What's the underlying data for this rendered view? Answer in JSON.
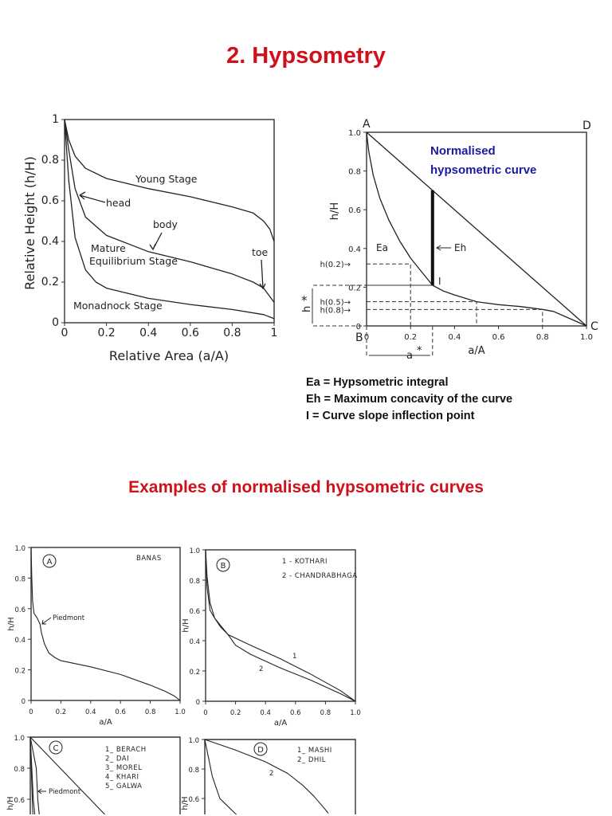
{
  "page": {
    "title": "2. Hypsometry",
    "examples_title": "Examples of normalised hypsometric curves",
    "legend": [
      "Ea = Hypsometric integral",
      "Eh = Maximum concavity of the curve",
      "I = Curve slope inflection point"
    ]
  },
  "chart_data": [
    {
      "id": "stages",
      "type": "line",
      "xlabel": "Relative Area (a/A)",
      "ylabel": "Relative Height (h/H)",
      "xlim": [
        0,
        1
      ],
      "ylim": [
        0,
        1
      ],
      "xticks": [
        "0",
        "0.2",
        "0.4",
        "0.6",
        "0.8",
        "1"
      ],
      "yticks": [
        "0",
        "0.2",
        "0.4",
        "0.6",
        "0.8",
        "1"
      ],
      "series": [
        {
          "name": "Young Stage",
          "x": [
            0,
            0.02,
            0.05,
            0.1,
            0.2,
            0.4,
            0.6,
            0.8,
            0.9,
            0.95,
            0.98,
            1
          ],
          "y": [
            1,
            0.9,
            0.82,
            0.76,
            0.71,
            0.66,
            0.62,
            0.57,
            0.54,
            0.5,
            0.46,
            0.4
          ]
        },
        {
          "name": "Mature Equilibrium Stage",
          "x": [
            0,
            0.02,
            0.05,
            0.1,
            0.2,
            0.4,
            0.6,
            0.8,
            0.9,
            0.95,
            1
          ],
          "y": [
            1,
            0.85,
            0.66,
            0.52,
            0.43,
            0.35,
            0.3,
            0.24,
            0.2,
            0.17,
            0.1
          ]
        },
        {
          "name": "Monadnock Stage",
          "x": [
            0,
            0.02,
            0.05,
            0.1,
            0.15,
            0.2,
            0.4,
            0.6,
            0.8,
            0.95,
            1
          ],
          "y": [
            1,
            0.7,
            0.42,
            0.26,
            0.2,
            0.17,
            0.12,
            0.09,
            0.065,
            0.04,
            0.02
          ]
        }
      ],
      "annotations": [
        "Young Stage",
        "head",
        "body",
        "Mature",
        "Equilibrium Stage",
        "toe",
        "Monadnock Stage"
      ]
    },
    {
      "id": "normalised",
      "type": "line",
      "title": "Normalised hypsometric curve",
      "title_lines": [
        "Normalised",
        "hypsometric curve"
      ],
      "title_color": "#1a1aa0",
      "xlabel": "a/A",
      "ylabel": "h/H",
      "xlim": [
        0,
        1
      ],
      "ylim": [
        0,
        1
      ],
      "xticks": [
        "0",
        "0.2",
        "0.4",
        "0.6",
        "0.8",
        "1.0"
      ],
      "yticks": [
        "0",
        "0.2",
        "0.4",
        "0.6",
        "0.8",
        "1.0"
      ],
      "corners": [
        "A",
        "B",
        "C",
        "D"
      ],
      "series": [
        {
          "name": "curve",
          "x": [
            0,
            0.01,
            0.03,
            0.06,
            0.1,
            0.15,
            0.2,
            0.25,
            0.3,
            0.35,
            0.4,
            0.5,
            0.6,
            0.7,
            0.8,
            0.85,
            0.9,
            1
          ],
          "y": [
            1,
            0.9,
            0.78,
            0.66,
            0.55,
            0.44,
            0.35,
            0.28,
            0.21,
            0.18,
            0.16,
            0.125,
            0.11,
            0.1,
            0.085,
            0.075,
            0.05,
            0
          ]
        },
        {
          "name": "diagonal",
          "x": [
            0,
            1
          ],
          "y": [
            1,
            0
          ]
        }
      ],
      "eh": {
        "x": 0.3,
        "y_from": 0.21,
        "y_to": 0.7
      },
      "guides": [
        {
          "label": "h(0.2)",
          "x": 0.2,
          "y": 0.32
        },
        {
          "label": "h(0.5)",
          "x": 0.5,
          "y": 0.125
        },
        {
          "label": "h(0.8)",
          "x": 0.8,
          "y": 0.085
        }
      ],
      "annotations": {
        "ea": "Ea",
        "eh": "Eh",
        "i": "I",
        "a_star": "a",
        "h_star": "h",
        "star": "*"
      }
    },
    {
      "id": "A",
      "type": "line",
      "badge": "A",
      "xlabel": "a/A",
      "ylabel": "h/H",
      "xticks": [
        "0",
        "0.2",
        "0.4",
        "0.6",
        "0.8",
        "1.0"
      ],
      "yticks": [
        "0",
        "0.2",
        "0.4",
        "0.6",
        "0.8",
        "1.0"
      ],
      "legend": [
        "BANAS"
      ],
      "annotation": "Piedmont",
      "series": [
        {
          "name": "BANAS",
          "x": [
            0,
            0.005,
            0.01,
            0.02,
            0.04,
            0.06,
            0.07,
            0.09,
            0.12,
            0.16,
            0.2,
            0.3,
            0.4,
            0.6,
            0.8,
            0.9,
            0.96,
            1
          ],
          "y": [
            1,
            0.8,
            0.65,
            0.57,
            0.54,
            0.5,
            0.44,
            0.37,
            0.31,
            0.28,
            0.26,
            0.24,
            0.22,
            0.17,
            0.1,
            0.06,
            0.03,
            0
          ]
        }
      ]
    },
    {
      "id": "B",
      "type": "line",
      "badge": "B",
      "xlabel": "a/A",
      "ylabel": "h/H",
      "xticks": [
        "0",
        "0.2",
        "0.4",
        "0.6",
        "0.8",
        "1.0"
      ],
      "yticks": [
        "0",
        "0.2",
        "0.4",
        "0.6",
        "0.8",
        "1.0"
      ],
      "legend": [
        "1 - KOTHARI",
        "2 - CHANDRABHAGA"
      ],
      "labels": [
        "1",
        "2"
      ],
      "series": [
        {
          "name": "1",
          "x": [
            0,
            0.01,
            0.03,
            0.06,
            0.1,
            0.15,
            0.3,
            0.5,
            0.7,
            0.9,
            1
          ],
          "y": [
            1,
            0.82,
            0.65,
            0.55,
            0.49,
            0.44,
            0.37,
            0.28,
            0.18,
            0.07,
            0
          ]
        },
        {
          "name": "2",
          "x": [
            0,
            0.01,
            0.03,
            0.06,
            0.1,
            0.15,
            0.2,
            0.3,
            0.5,
            0.7,
            0.9,
            1
          ],
          "y": [
            1,
            0.75,
            0.6,
            0.55,
            0.5,
            0.44,
            0.37,
            0.31,
            0.22,
            0.14,
            0.05,
            0
          ]
        }
      ]
    },
    {
      "id": "C",
      "type": "line",
      "badge": "C",
      "ylabel": "h/H",
      "yticks": [
        "0.6",
        "0.8",
        "1.0"
      ],
      "legend": [
        "1_ BERACH",
        "2_ DAI",
        "3_ MOREL",
        "4_ KHARI",
        "5_ GALWA"
      ],
      "annotation": "Piedmont",
      "series": [
        {
          "name": "diagonal",
          "x": [
            0,
            1
          ],
          "y": [
            1,
            0
          ]
        },
        {
          "name": "1",
          "x": [
            0,
            0.02,
            0.04,
            0.05,
            0.06,
            0.07
          ],
          "y": [
            1,
            0.9,
            0.8,
            0.6,
            0.5,
            0.45
          ]
        },
        {
          "name": "2",
          "x": [
            0,
            0.01,
            0.02,
            0.03,
            0.04
          ],
          "y": [
            1,
            0.8,
            0.6,
            0.5,
            0.45
          ]
        },
        {
          "name": "3",
          "x": [
            0,
            0.01,
            0.015,
            0.02
          ],
          "y": [
            1,
            0.7,
            0.55,
            0.45
          ]
        }
      ]
    },
    {
      "id": "D",
      "type": "line",
      "badge": "D",
      "ylabel": "h/H",
      "yticks": [
        "0.6",
        "0.8",
        "1.0"
      ],
      "legend": [
        "1_ MASHI",
        "2_ DHIL"
      ],
      "labels": [
        "2"
      ],
      "series": [
        {
          "name": "2",
          "x": [
            0,
            0.2,
            0.4,
            0.55,
            0.65,
            0.72,
            0.78,
            0.82
          ],
          "y": [
            1,
            0.93,
            0.85,
            0.77,
            0.69,
            0.62,
            0.55,
            0.5
          ]
        },
        {
          "name": "1",
          "x": [
            0,
            0.05,
            0.1,
            0.15,
            0.2,
            0.25
          ],
          "y": [
            1,
            0.75,
            0.6,
            0.55,
            0.5,
            0.46
          ]
        }
      ]
    }
  ]
}
